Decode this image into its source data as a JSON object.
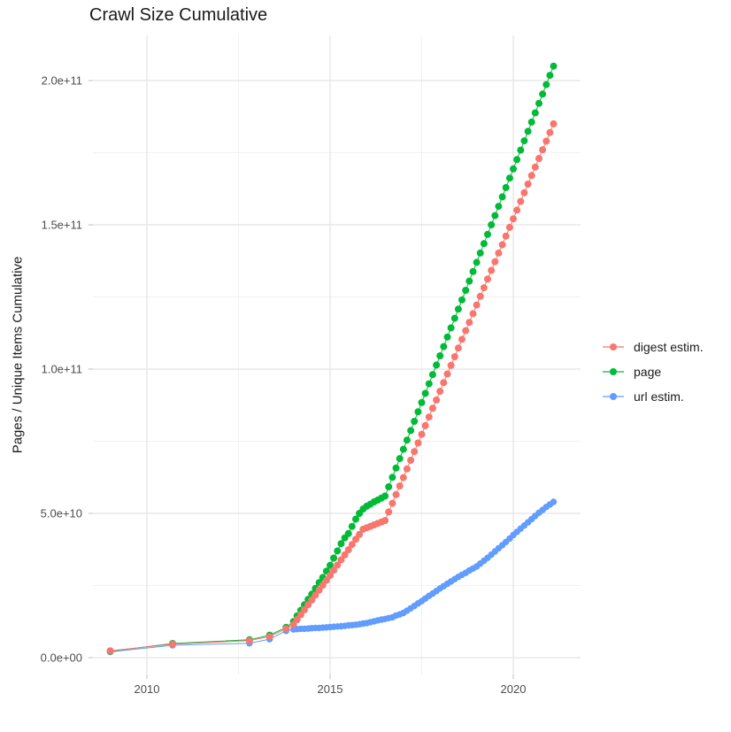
{
  "title": "Crawl Size Cumulative",
  "y_axis_title": "Pages / Unique Items Cumulative",
  "x_tick_labels": [
    "2010",
    "2015",
    "2020"
  ],
  "y_tick_labels": [
    "0.0e+00",
    "5.0e+10",
    "1.0e+11",
    "1.5e+11",
    "2.0e+11"
  ],
  "legend": {
    "position": "right",
    "items": [
      {
        "label": "digest estim.",
        "color": "#F8766D"
      },
      {
        "label": "page",
        "color": "#00BA38"
      },
      {
        "label": "url estim.",
        "color": "#619CFF"
      }
    ]
  },
  "colors": {
    "background": "#FFFFFF",
    "grid_major": "#E4E4E4",
    "grid_minor": "#F1F1F1",
    "axis_tick": "#C9C9C9",
    "tick_label": "#4D4D4D",
    "text": "#1A1A1A"
  },
  "chart_data": {
    "type": "line",
    "marker": "point",
    "title": "Crawl Size Cumulative",
    "xlabel": "",
    "ylabel": "Pages / Unique Items Cumulative",
    "xlim": [
      2008.5,
      2021.85
    ],
    "ylim": [
      -5800000000.0,
      216000000000.0
    ],
    "x_ticks": [
      2010,
      2015,
      2020
    ],
    "x_minor_ticks": [
      2012.5,
      2017.5
    ],
    "y_ticks": [
      0,
      50000000000.0,
      100000000000.0,
      150000000000.0,
      200000000000.0
    ],
    "y_minor_ticks": [
      25000000000.0,
      75000000000.0,
      125000000000.0,
      175000000000.0
    ],
    "x_tick_labels": [
      "2010",
      "2015",
      "2020"
    ],
    "y_tick_labels": [
      "0.0e+00",
      "5.0e+10",
      "1.0e+11",
      "1.5e+11",
      "2.0e+11"
    ],
    "grid": "major+minor",
    "legend_position": "right",
    "value_unit": 1000000000.0,
    "note": "dense_values are in units of 1e9 (billions of pages / unique items), sampled every 0.1 year starting at dense_from; early_points are [year, absolute value]",
    "series": [
      {
        "name": "url estim.",
        "color": "#619CFF",
        "early_points": [
          [
            2009.0,
            2000000000.0
          ],
          [
            2010.7,
            4300000000.0
          ],
          [
            2012.8,
            5000000000.0
          ],
          [
            2013.35,
            6400000000.0
          ],
          [
            2013.8,
            9300000000.0
          ]
        ],
        "dense_from": 2014.0,
        "dense_step": 0.1,
        "dense_values": [
          9.8,
          9.9,
          10,
          10,
          10.1,
          10.2,
          10.3,
          10.3,
          10.4,
          10.5,
          10.6,
          10.7,
          10.8,
          10.9,
          11,
          11.2,
          11.3,
          11.4,
          11.6,
          11.8,
          12,
          12.3,
          12.6,
          12.9,
          13.2,
          13.4,
          13.7,
          14,
          14.6,
          15,
          15.5,
          16.3,
          17.1,
          17.9,
          18.8,
          19.6,
          20.5,
          21.4,
          22.2,
          23.1,
          24,
          24.8,
          25.6,
          26.4,
          27.2,
          28,
          28.7,
          29.4,
          30.2,
          30.9,
          31.6,
          32.6,
          33.6,
          34.6,
          35.7,
          36.8,
          37.9,
          39,
          40.1,
          41.3,
          42.5,
          43.6,
          44.7,
          45.8,
          46.9,
          48,
          49.1,
          50.2,
          51.2,
          52.2,
          53.1,
          54
        ]
      },
      {
        "name": "page",
        "color": "#00BA38",
        "early_points": [
          [
            2009.0,
            2200000000.0
          ],
          [
            2010.7,
            4900000000.0
          ],
          [
            2012.8,
            6200000000.0
          ],
          [
            2013.35,
            7800000000.0
          ],
          [
            2013.8,
            10500000000.0
          ]
        ],
        "dense_from": 2014.0,
        "dense_step": 0.1,
        "dense_values": [
          12.5,
          14.5,
          16.4,
          18.3,
          20.2,
          22,
          24,
          26,
          27.8,
          30,
          32,
          34.5,
          37,
          39.5,
          41.5,
          43,
          45.5,
          48,
          50,
          51.5,
          52.5,
          53.2,
          54,
          54.6,
          55.3,
          56,
          59.2,
          62.5,
          65.7,
          69,
          72.2,
          75.4,
          78.7,
          81.9,
          85.2,
          88.4,
          91.6,
          94.9,
          98.1,
          101.4,
          104.6,
          107.8,
          111.1,
          114.3,
          117.6,
          120.8,
          124,
          127.3,
          130.5,
          133.8,
          137,
          140.2,
          143.5,
          146.7,
          150,
          153.2,
          156.4,
          159.7,
          162.9,
          166.2,
          169.4,
          172.6,
          175.9,
          179.1,
          182.4,
          185.6,
          188.8,
          192.1,
          195.3,
          198.6,
          201.8,
          205
        ]
      },
      {
        "name": "digest estim.",
        "color": "#F8766D",
        "early_points": [
          [
            2009.0,
            2400000000.0
          ],
          [
            2010.7,
            4700000000.0
          ],
          [
            2012.8,
            5900000000.0
          ],
          [
            2013.35,
            7300000000.0
          ],
          [
            2013.8,
            10000000000.0
          ]
        ],
        "dense_from": 2014.0,
        "dense_step": 0.1,
        "dense_values": [
          11.5,
          13.2,
          14.9,
          16.6,
          18.3,
          20,
          21.7,
          23.4,
          25.1,
          26.8,
          28.5,
          30.3,
          32.1,
          33.9,
          35.6,
          37.4,
          39.2,
          41,
          42.7,
          44.5,
          45,
          45.5,
          46,
          46.5,
          47,
          47.5,
          50.5,
          53.5,
          56.5,
          59.5,
          62.4,
          65.4,
          68.4,
          71.4,
          74.4,
          77.4,
          80.4,
          83.4,
          86.4,
          89.3,
          92.3,
          95.3,
          98.3,
          101.3,
          104.3,
          107.3,
          110.3,
          113.3,
          116.2,
          119.2,
          122.2,
          125.2,
          128.2,
          131.2,
          134.2,
          137.2,
          140.2,
          143.1,
          146.1,
          149.1,
          152.1,
          155.1,
          158.1,
          161.1,
          164.1,
          167.1,
          170,
          173,
          176,
          179,
          182,
          185
        ]
      }
    ]
  }
}
